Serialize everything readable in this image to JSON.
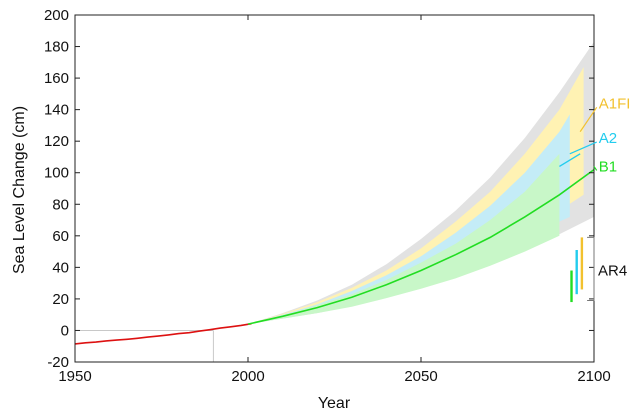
{
  "chart_data": {
    "type": "line",
    "xlabel": "Year",
    "ylabel": "Sea Level Change (cm)",
    "xlim": [
      1950,
      2100
    ],
    "ylim": [
      -20,
      200
    ],
    "xticks": [
      "1950",
      "2000",
      "2050",
      "2100"
    ],
    "yticks": [
      "-20",
      "0",
      "20",
      "40",
      "60",
      "80",
      "100",
      "120",
      "140",
      "160",
      "180",
      "200"
    ],
    "grid": false,
    "colors": {
      "observed": "#dd1111",
      "b1": "#22dd22",
      "a2": "#22ccee",
      "a1fi": "#f2c12e",
      "envelope": "#e2e2e2",
      "a1fi_band": "#fff2b3",
      "a2_band": "#c4ecf7",
      "b1_band": "#c8f7c8"
    },
    "observed": {
      "x": [
        1950,
        1953,
        1956,
        1959,
        1962,
        1965,
        1968,
        1971,
        1974,
        1977,
        1980,
        1983,
        1986,
        1989,
        1992,
        1995,
        1998,
        2001
      ],
      "y": [
        -8.5,
        -7.8,
        -7.4,
        -6.6,
        -6.1,
        -5.6,
        -5.0,
        -4.2,
        -3.6,
        -2.8,
        -2.0,
        -1.4,
        -0.4,
        0.5,
        1.5,
        2.3,
        3.2,
        4.3
      ]
    },
    "projection_x": [
      2000,
      2010,
      2020,
      2030,
      2040,
      2050,
      2060,
      2070,
      2080,
      2090,
      2100
    ],
    "b1": [
      4,
      9,
      14.5,
      21,
      29,
      38,
      48,
      59,
      72,
      86,
      102
    ],
    "envelope": {
      "upper": [
        4,
        11,
        19,
        29,
        42,
        58,
        76,
        97,
        122,
        151,
        183
      ],
      "lower": [
        4,
        7.5,
        11,
        15.5,
        21,
        27,
        34,
        42,
        51,
        61,
        72
      ]
    },
    "bands": {
      "a1fi": {
        "x": [
          2000,
          2010,
          2020,
          2030,
          2040,
          2050,
          2060,
          2070,
          2080,
          2090,
          2097
        ],
        "upper": [
          4,
          10.5,
          18,
          27,
          38,
          52,
          69,
          88,
          112,
          140,
          167
        ],
        "lower": [
          4,
          8,
          13,
          18,
          25,
          33,
          42,
          52,
          63,
          76,
          86
        ]
      },
      "a2": {
        "x": [
          2000,
          2010,
          2020,
          2030,
          2040,
          2050,
          2060,
          2070,
          2080,
          2090,
          2093
        ],
        "upper": [
          4,
          10,
          16.5,
          25,
          35,
          47,
          62,
          79,
          100,
          126,
          137
        ],
        "lower": [
          4,
          8,
          12,
          17,
          23,
          30,
          38,
          47,
          57,
          69,
          72
        ]
      },
      "b1": {
        "x": [
          2000,
          2010,
          2020,
          2030,
          2040,
          2050,
          2060,
          2070,
          2080,
          2090
        ],
        "upper": [
          4,
          9.5,
          16,
          23,
          32,
          43,
          55,
          70,
          88,
          112
        ],
        "lower": [
          4,
          7.5,
          11,
          15,
          20.5,
          26.5,
          33,
          41,
          50,
          60
        ]
      }
    },
    "series_labels": [
      {
        "name": "A1FI",
        "color": "#f2c12e",
        "x": 2100.5,
        "y": 144,
        "from": [
          2096,
          126
        ]
      },
      {
        "name": "A2",
        "color": "#22ccee",
        "x": 2100.5,
        "y": 122,
        "from": [
          2093,
          112
        ]
      },
      {
        "name": "B1",
        "color": "#22dd22",
        "x": 2100.5,
        "y": 104,
        "from": [
          2100,
          104
        ]
      }
    ],
    "a2_segment": {
      "x": [
        2090,
        2096
      ],
      "y": [
        104,
        112
      ]
    },
    "ar4": {
      "label": "AR4",
      "bars": [
        {
          "name": "B1",
          "color": "#22dd22",
          "x": 2093.5,
          "y": [
            18,
            38
          ]
        },
        {
          "name": "A2",
          "color": "#22ccee",
          "x": 2095.0,
          "y": [
            23,
            51
          ]
        },
        {
          "name": "A1FI",
          "color": "#f2c12e",
          "x": 2096.5,
          "y": [
            26,
            59
          ]
        }
      ],
      "bracket_x": [
        2098,
        2100
      ],
      "bracket_y": [
        19,
        59
      ],
      "label_y": 38
    },
    "reference_line": {
      "y": 0,
      "x": [
        1950,
        1990
      ],
      "vline_x": 1990
    },
    "annotations": []
  }
}
